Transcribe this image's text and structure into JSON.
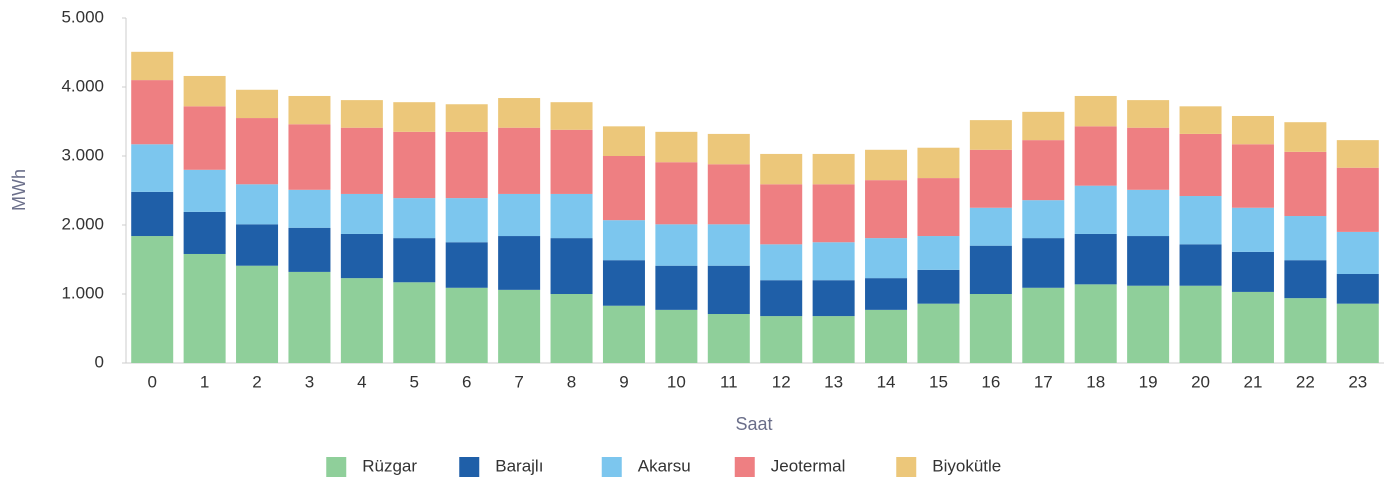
{
  "chart_data": {
    "type": "stacked_bar",
    "xlabel": "Saat",
    "ylabel": "MWh",
    "categories": [
      "0",
      "1",
      "2",
      "3",
      "4",
      "5",
      "6",
      "7",
      "8",
      "9",
      "10",
      "11",
      "12",
      "13",
      "14",
      "15",
      "16",
      "17",
      "18",
      "19",
      "20",
      "21",
      "22",
      "23"
    ],
    "series": [
      {
        "name": "Rüzgar",
        "color": "#8fcf9a",
        "values": [
          1840,
          1580,
          1410,
          1320,
          1230,
          1170,
          1090,
          1060,
          1000,
          830,
          770,
          710,
          680,
          680,
          770,
          860,
          1000,
          1090,
          1140,
          1120,
          1120,
          1030,
          940,
          860
        ]
      },
      {
        "name": "Barajlı",
        "color": "#1f5fa8",
        "values": [
          640,
          610,
          600,
          640,
          640,
          640,
          660,
          780,
          810,
          660,
          640,
          700,
          520,
          520,
          460,
          490,
          700,
          720,
          730,
          720,
          600,
          580,
          550,
          430
        ]
      },
      {
        "name": "Akarsu",
        "color": "#7cc6ee",
        "values": [
          690,
          610,
          580,
          550,
          580,
          580,
          640,
          610,
          640,
          580,
          600,
          600,
          520,
          550,
          580,
          490,
          550,
          550,
          700,
          670,
          700,
          640,
          640,
          610
        ]
      },
      {
        "name": "Jeotermal",
        "color": "#ee7f82",
        "values": [
          930,
          920,
          960,
          950,
          960,
          960,
          960,
          960,
          930,
          930,
          900,
          870,
          870,
          840,
          840,
          840,
          840,
          870,
          860,
          900,
          900,
          920,
          930,
          930
        ]
      },
      {
        "name": "Biyokütle",
        "color": "#ecc77a",
        "values": [
          410,
          440,
          410,
          410,
          400,
          430,
          400,
          430,
          400,
          430,
          440,
          440,
          440,
          440,
          440,
          440,
          430,
          410,
          440,
          400,
          400,
          410,
          430,
          400
        ]
      }
    ],
    "ylim": [
      0,
      5000
    ],
    "yticks": [
      0,
      {
        "value": 1000,
        "label": "1.000"
      },
      {
        "value": 2000,
        "label": "2.000"
      },
      {
        "value": 3000,
        "label": "3.000"
      },
      {
        "value": 4000,
        "label": "4.000"
      },
      {
        "value": 5000,
        "label": "5.000"
      }
    ],
    "legend": "bottom"
  }
}
